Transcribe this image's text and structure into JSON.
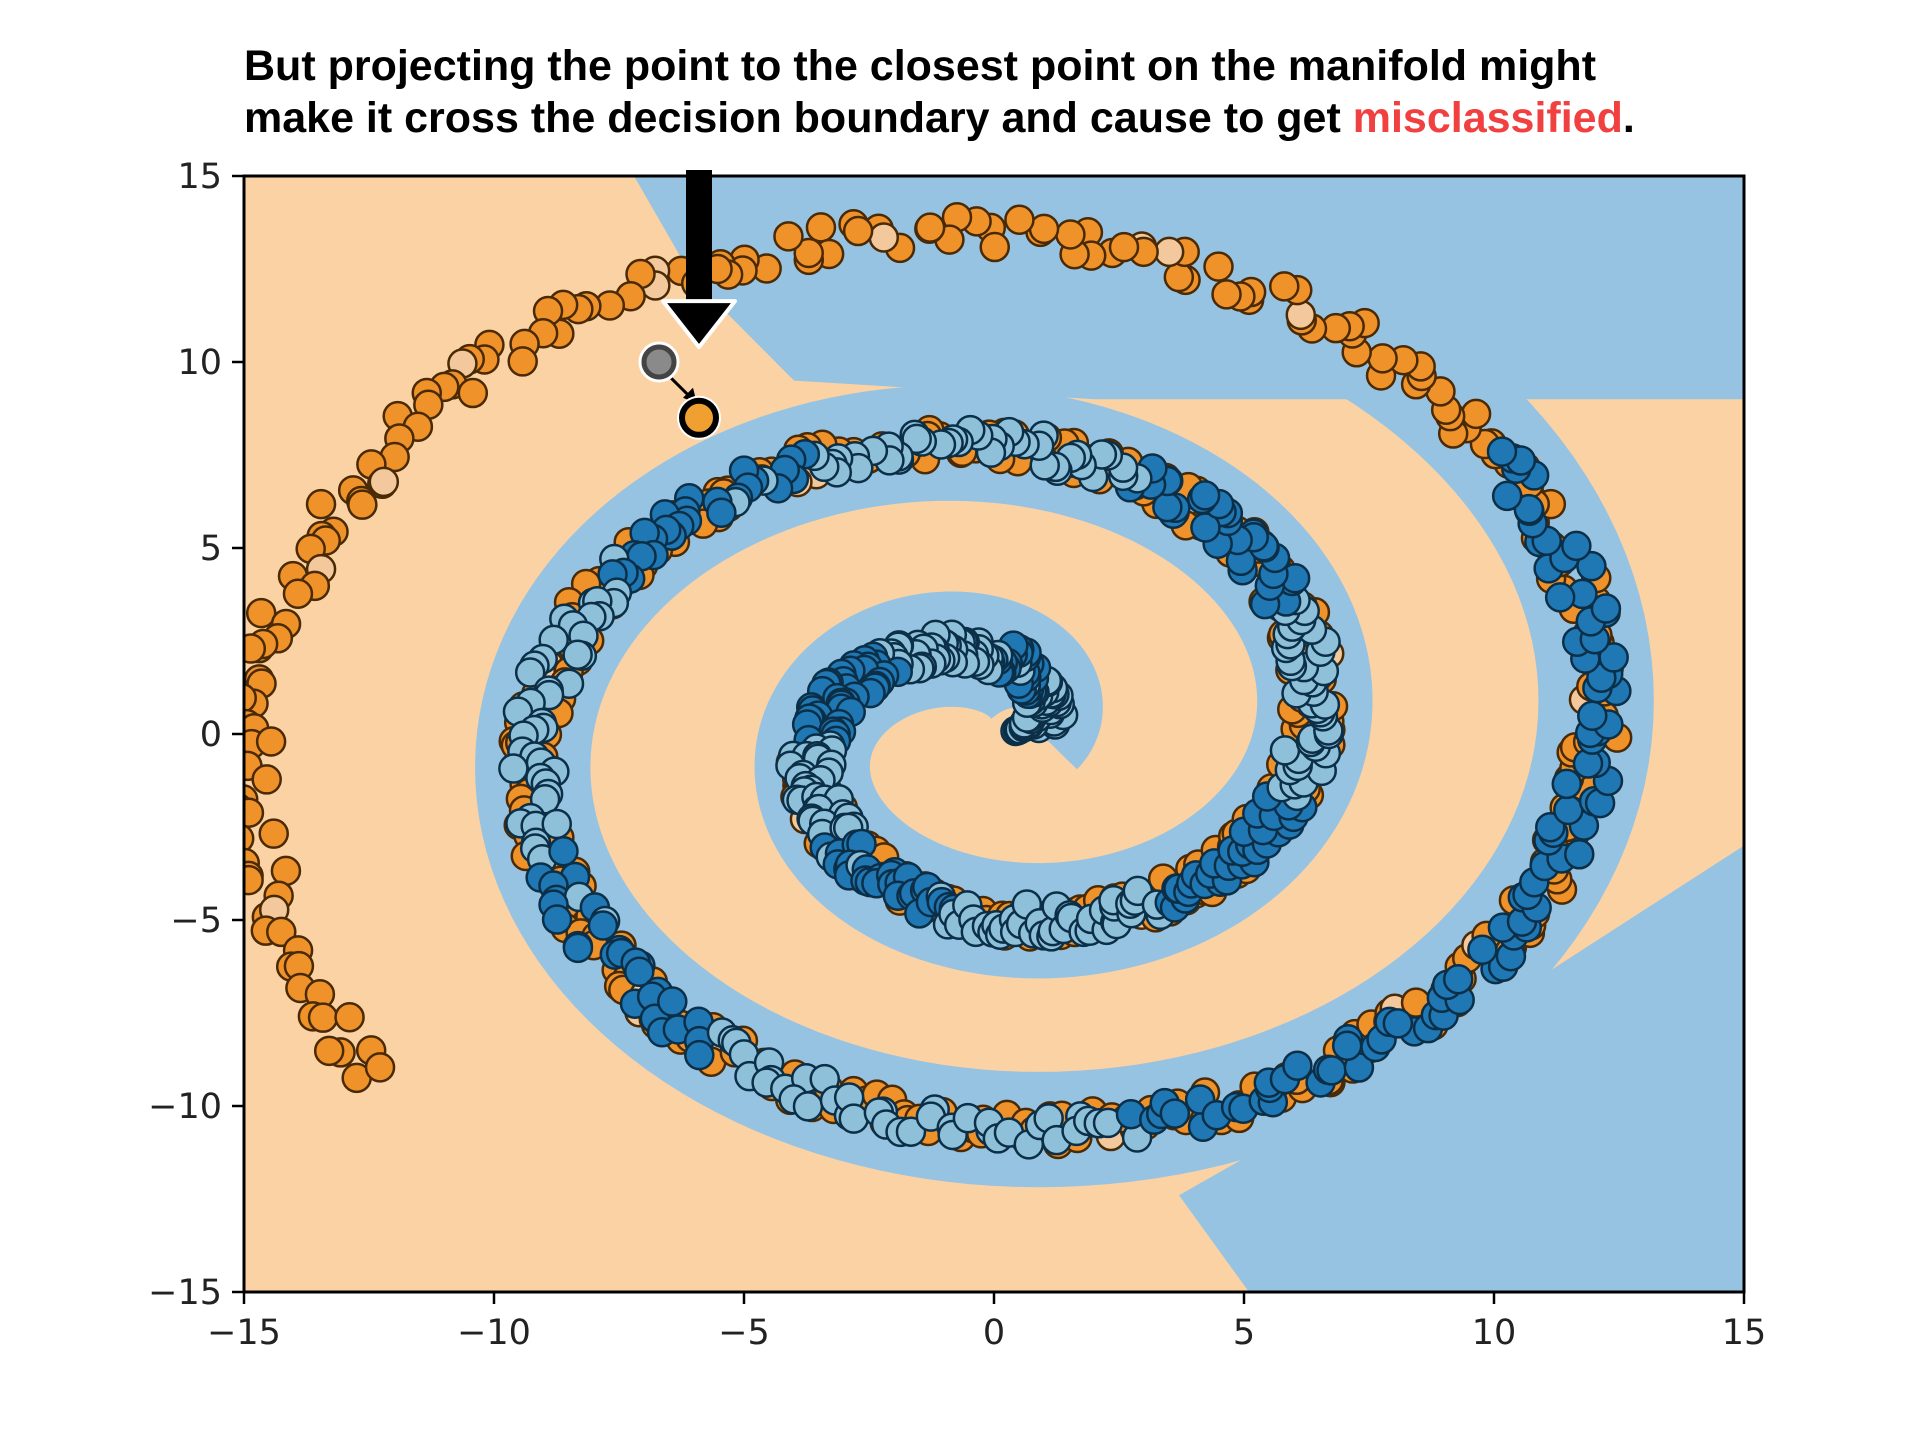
{
  "caption": {
    "line1": "But projecting the point to the closest point on the manifold might",
    "line2_before": "make it cross the decision boundary and cause to get ",
    "line2_highlight": "misclassified",
    "line2_after": "."
  },
  "colors": {
    "region_orange": "#fbd2a3",
    "region_blue": "#97c3e3",
    "class_orange": "#f0922a",
    "class_orange_light": "#f2c89c",
    "class_blue_dark": "#1f77b4",
    "class_blue_light": "#8fc0da",
    "edge_orange": "#4a2a05",
    "edge_blue": "#0c2f48",
    "highlight_text": "#f04040",
    "original_point": "#8a8a8a",
    "projected_point": "#f0a030",
    "arrow": "#000000"
  },
  "chart_data": {
    "type": "scatter",
    "title": "",
    "xlabel": "",
    "ylabel": "",
    "xlim": [
      -15,
      15
    ],
    "ylim": [
      -15,
      15
    ],
    "xticks": [
      -15,
      -10,
      -5,
      0,
      5,
      10,
      15
    ],
    "yticks": [
      -15,
      -10,
      -5,
      0,
      5,
      10,
      15
    ],
    "xtick_labels": [
      "−15",
      "−10",
      "−5",
      "0",
      "5",
      "10",
      "15"
    ],
    "ytick_labels": [
      "−15",
      "−10",
      "−5",
      "0",
      "5",
      "10",
      "15"
    ],
    "grid": false,
    "legend": "none",
    "background": "decision regions (orange class / blue class)",
    "series": [
      {
        "class": "orange",
        "spiral": {
          "center": [
            0,
            0
          ],
          "radius_start": 0.7,
          "radius_growth_per_radian": 0.9,
          "angle_start_rad": 3.3,
          "angle_end_rad": 16.35,
          "n_points": 640
        }
      },
      {
        "class": "blue",
        "spiral": {
          "center": [
            0,
            0
          ],
          "radius_start": 0.7,
          "radius_growth_per_radian": 0.9,
          "angle_start_rad": 0.16,
          "angle_end_rad": 13.21,
          "n_points": 620
        }
      }
    ],
    "annotations": {
      "original_point": [
        -6.7,
        10.0
      ],
      "projected_point": [
        -5.9,
        8.5
      ],
      "arrow_down": {
        "x": -5.9,
        "y_from": 15,
        "y_to": 10.4
      }
    }
  }
}
